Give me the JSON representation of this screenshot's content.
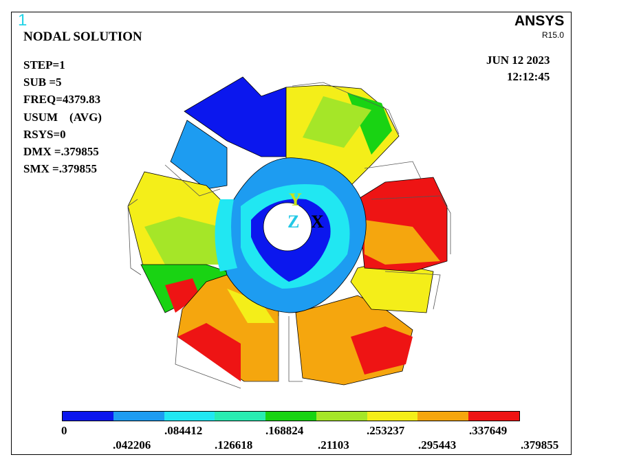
{
  "window_number": "1",
  "plot_title": "NODAL SOLUTION",
  "info_lines": [
    "STEP=1",
    "SUB =5",
    "FREQ=4379.83",
    "USUM    (AVG)",
    "RSYS=0",
    "DMX =.379855",
    "SMX =.379855"
  ],
  "brand": "ANSYS",
  "release": "R15.0",
  "date": "JUN 12 2023",
  "time": "12:12:45",
  "axis_labels": {
    "y": "Y",
    "z": "Z",
    "x": "X"
  },
  "legend": {
    "colors": [
      "#0b17ee",
      "#1d9cf1",
      "#21e7f2",
      "#29ecb2",
      "#19d313",
      "#a5e628",
      "#f4ee19",
      "#f5a60e",
      "#ee1414"
    ],
    "labels_top": [
      "0",
      ".084412",
      ".168824",
      ".253237",
      ".337649"
    ],
    "labels_bottom": [
      ".042206",
      ".126618",
      ".21103",
      ".295443",
      ".379855"
    ]
  },
  "contour_colors": {
    "blue": "#0b17ee",
    "medium_blue": "#1d9cf1",
    "cyan": "#21e7f2",
    "aqua": "#29ecb2",
    "green": "#19d313",
    "yellow_green": "#a5e628",
    "yellow": "#f4ee19",
    "orange": "#f5a60e",
    "red": "#ee1414"
  }
}
